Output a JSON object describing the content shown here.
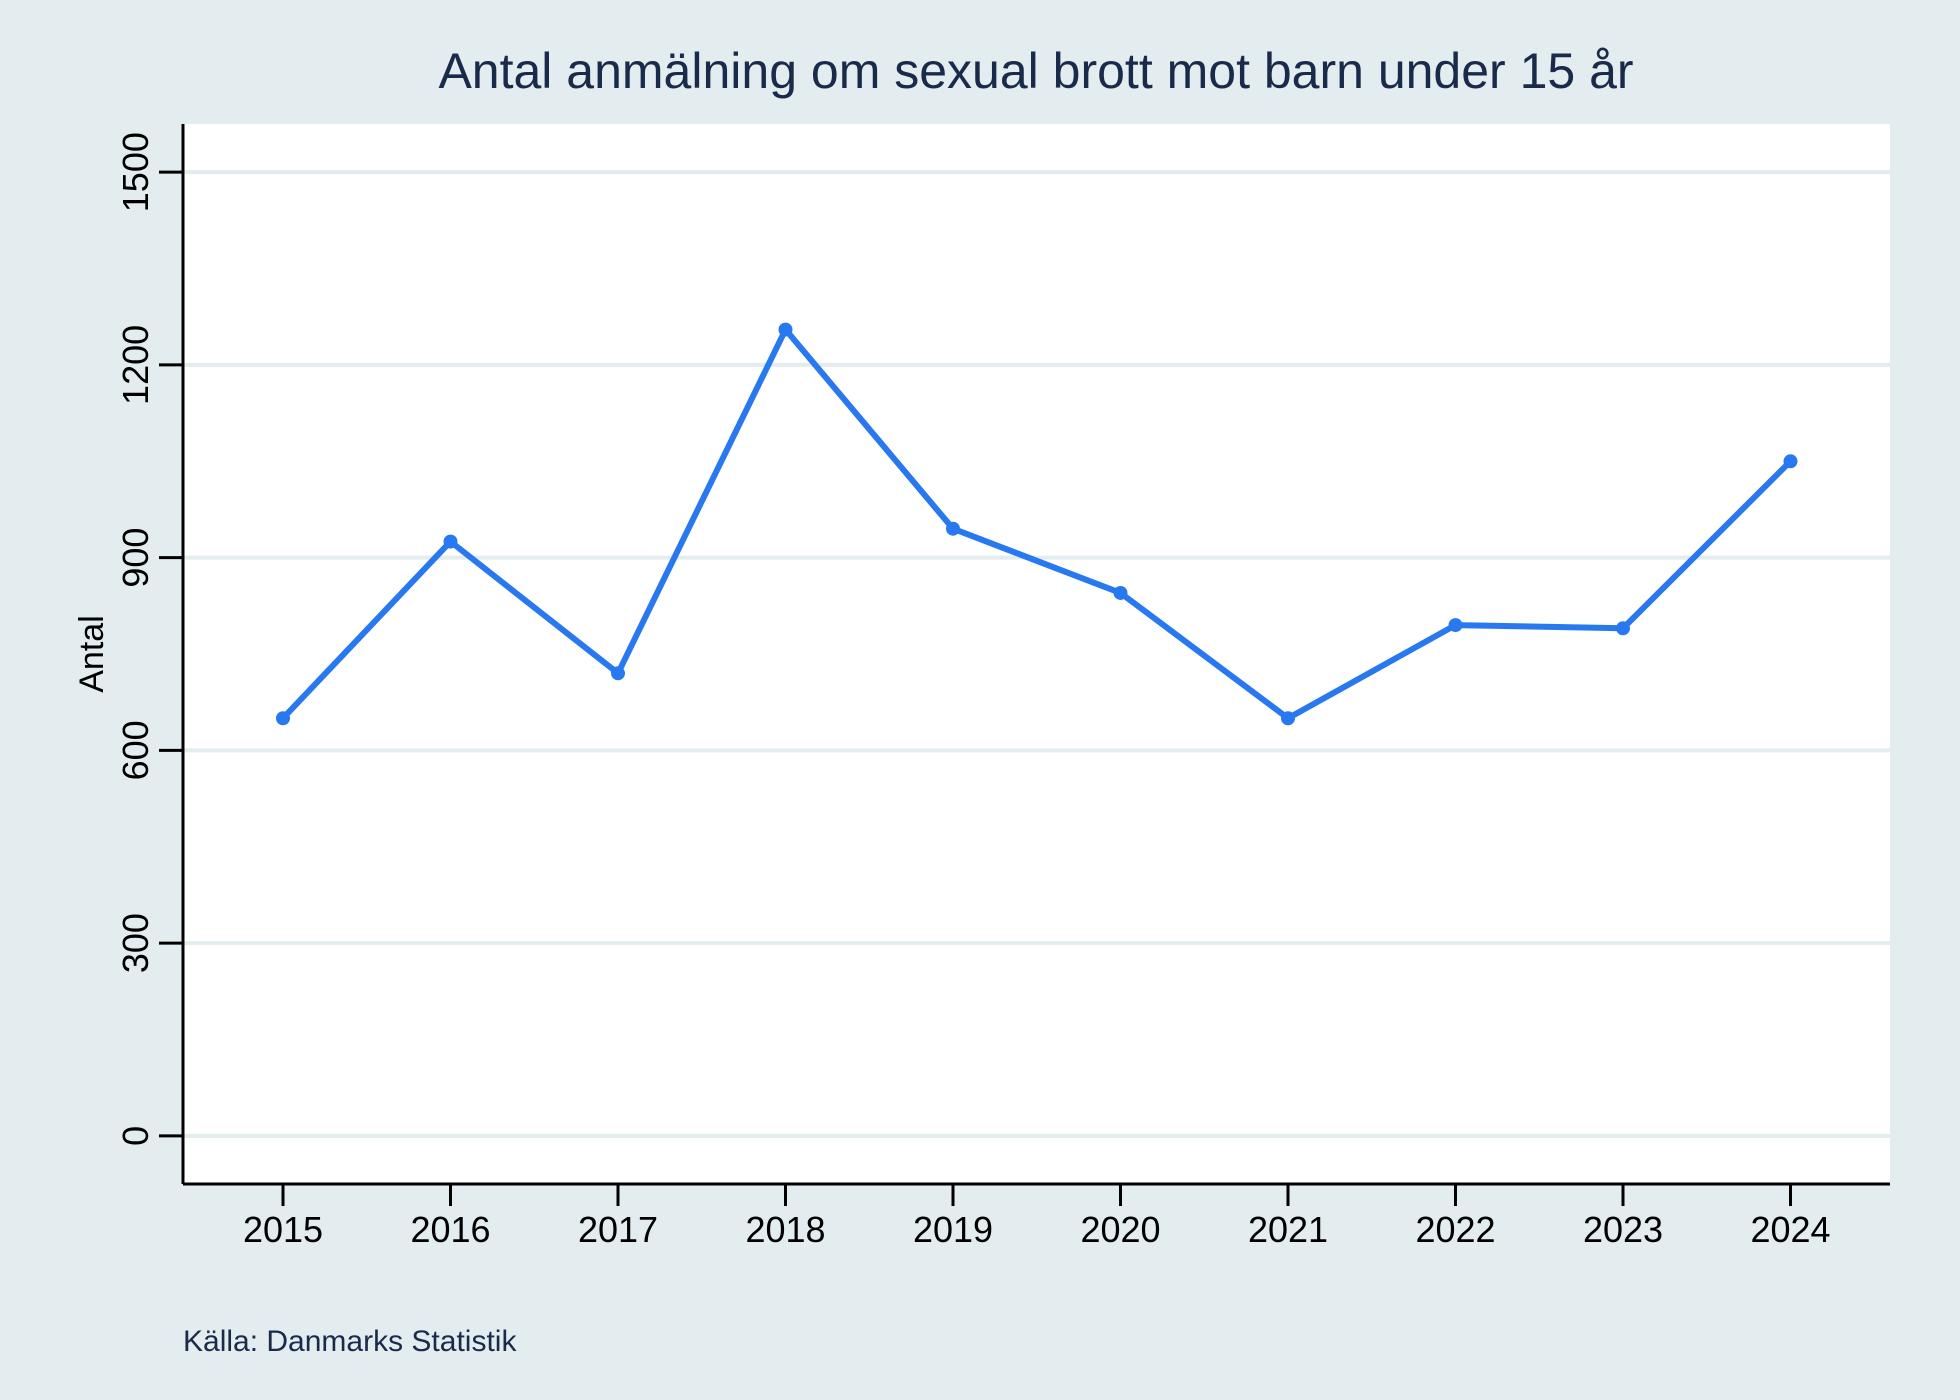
{
  "chart_data": {
    "type": "line",
    "title": "Antal anmälning om sexual brott mot barn under 15 år",
    "xlabel": "",
    "ylabel": "Antal",
    "source": "Källa: Danmarks Statistik",
    "x": [
      "2015",
      "2016",
      "2017",
      "2018",
      "2019",
      "2020",
      "2021",
      "2022",
      "2023",
      "2024"
    ],
    "series": [
      {
        "values": [
          650,
          925,
          720,
          1255,
          945,
          845,
          650,
          795,
          790,
          1050
        ]
      }
    ],
    "yticks": [
      0,
      300,
      600,
      900,
      1200,
      1500
    ],
    "ylim": [
      -75,
      1575
    ],
    "grid": true,
    "colors": {
      "line": "#2878f0",
      "background": "#e3ecee",
      "plot_background": "#ffffff",
      "grid": "#e3ecee",
      "axis": "#000000"
    }
  }
}
